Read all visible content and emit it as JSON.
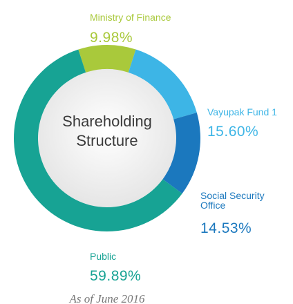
{
  "chart_data": {
    "type": "donut",
    "title": "Shareholding Structure",
    "subtitle": "As of June 2016",
    "categories": [
      "Ministry of Finance",
      "Vayupak Fund 1",
      "Social Security Office",
      "Public"
    ],
    "values": [
      9.98,
      15.6,
      14.53,
      59.89
    ],
    "value_labels": [
      "9.98%",
      "15.60%",
      "14.53%",
      "59.89%"
    ],
    "colors": [
      "#a9c93b",
      "#3db5e6",
      "#1b78be",
      "#17a394"
    ]
  }
}
